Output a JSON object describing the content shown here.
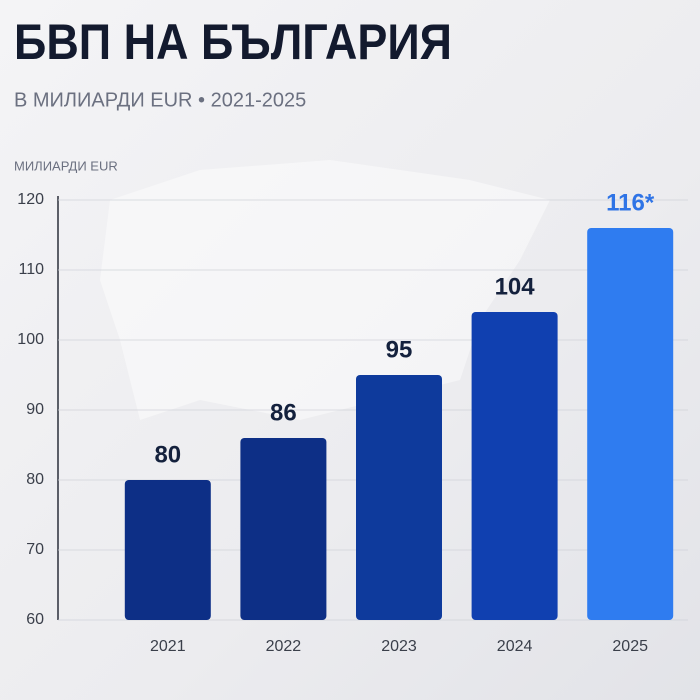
{
  "chart_data": {
    "type": "bar",
    "title": "БВП НА БЪЛГАРИЯ",
    "subtitle": "В МИЛИАРДИ EUR • 2021-2025",
    "y_axis_label": "МИЛИАРДИ EUR",
    "categories": [
      "2021",
      "2022",
      "2023",
      "2024",
      "2025"
    ],
    "values": [
      80,
      86,
      95,
      104,
      116
    ],
    "value_labels": [
      "80",
      "86",
      "95",
      "104",
      "116*"
    ],
    "colors": [
      "#0d2f86",
      "#0d2f86",
      "#0e3a9c",
      "#1040b0",
      "#2f7cf0"
    ],
    "label_colors": [
      "#14213d",
      "#14213d",
      "#14213d",
      "#14213d",
      "#2f74e6"
    ],
    "ylim": [
      60,
      120
    ],
    "yticks": [
      60,
      70,
      80,
      90,
      100,
      110,
      120
    ],
    "grid": true
  }
}
